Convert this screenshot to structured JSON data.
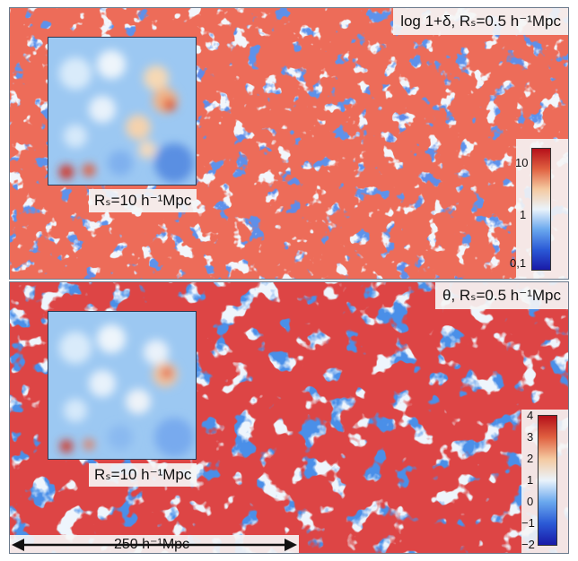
{
  "top_panel": {
    "title": "log 1+δ, Rₛ=0.5 h⁻¹Mpc",
    "inset_label": "Rₛ=10 h⁻¹Mpc",
    "colorbar": {
      "scale": "log",
      "min": 0.1,
      "max": 20,
      "ticks": [
        "10",
        "1",
        "0,1"
      ],
      "colors": [
        "#1a1aa8",
        "#2b5ad6",
        "#6aa8ee",
        "#eaf3fb",
        "#f4c9a0",
        "#e06040",
        "#b5101a"
      ]
    }
  },
  "bottom_panel": {
    "title": "θ, Rₛ=0.5 h⁻¹Mpc",
    "inset_label": "Rₛ=10 h⁻¹Mpc",
    "colorbar": {
      "scale": "linear",
      "min": -2,
      "max": 4,
      "ticks": [
        "4",
        "3",
        "2",
        "1",
        "0",
        "−1",
        "−2"
      ],
      "colors": [
        "#1a1aa8",
        "#2b5ad6",
        "#6aa8ee",
        "#eaf3fb",
        "#f4c9a0",
        "#e06040",
        "#b5101a"
      ]
    }
  },
  "scale_bar": {
    "label": "250 h⁻¹Mpc"
  }
}
